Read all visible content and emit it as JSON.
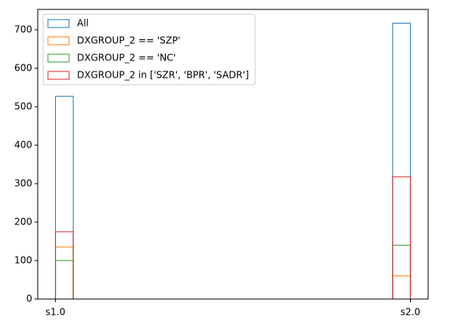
{
  "chart_data": {
    "type": "histogram",
    "bins": [
      0,
      0.05,
      0.1,
      0.15,
      0.2,
      0.25,
      0.3,
      0.35,
      0.4,
      0.45,
      0.5,
      0.55,
      0.6,
      0.65,
      0.7,
      0.75,
      0.8,
      0.85,
      0.9,
      0.95,
      1
    ],
    "series": [
      {
        "name": "All",
        "color": "#1f77b4",
        "values": [
          527,
          0,
          0,
          0,
          0,
          0,
          0,
          0,
          0,
          0,
          0,
          0,
          0,
          0,
          0,
          0,
          0,
          0,
          0,
          717
        ]
      },
      {
        "name": "DXGROUP_2 == 'SZP'",
        "color": "#ff7f0e",
        "values": [
          135,
          0,
          0,
          0,
          0,
          0,
          0,
          0,
          0,
          0,
          0,
          0,
          0,
          0,
          0,
          0,
          0,
          0,
          0,
          60
        ]
      },
      {
        "name": "DXGROUP_2 == 'NC'",
        "color": "#2ca02c",
        "values": [
          100,
          0,
          0,
          0,
          0,
          0,
          0,
          0,
          0,
          0,
          0,
          0,
          0,
          0,
          0,
          0,
          0,
          0,
          0,
          140
        ]
      },
      {
        "name": "DXGROUP_2 in ['SZR', 'BPR', 'SADR']",
        "color": "#d62728",
        "values": [
          175,
          0,
          0,
          0,
          0,
          0,
          0,
          0,
          0,
          0,
          0,
          0,
          0,
          0,
          0,
          0,
          0,
          0,
          0,
          318
        ]
      }
    ],
    "xlim": [
      -0.05,
      1.05
    ],
    "xticks": [
      {
        "value": 0,
        "label": "s1.0"
      },
      {
        "value": 1,
        "label": "s2.0"
      }
    ],
    "ylim": [
      0,
      753
    ],
    "yticks": [
      0,
      100,
      200,
      300,
      400,
      500,
      600,
      700
    ],
    "legend": "upper left",
    "grid": false
  }
}
